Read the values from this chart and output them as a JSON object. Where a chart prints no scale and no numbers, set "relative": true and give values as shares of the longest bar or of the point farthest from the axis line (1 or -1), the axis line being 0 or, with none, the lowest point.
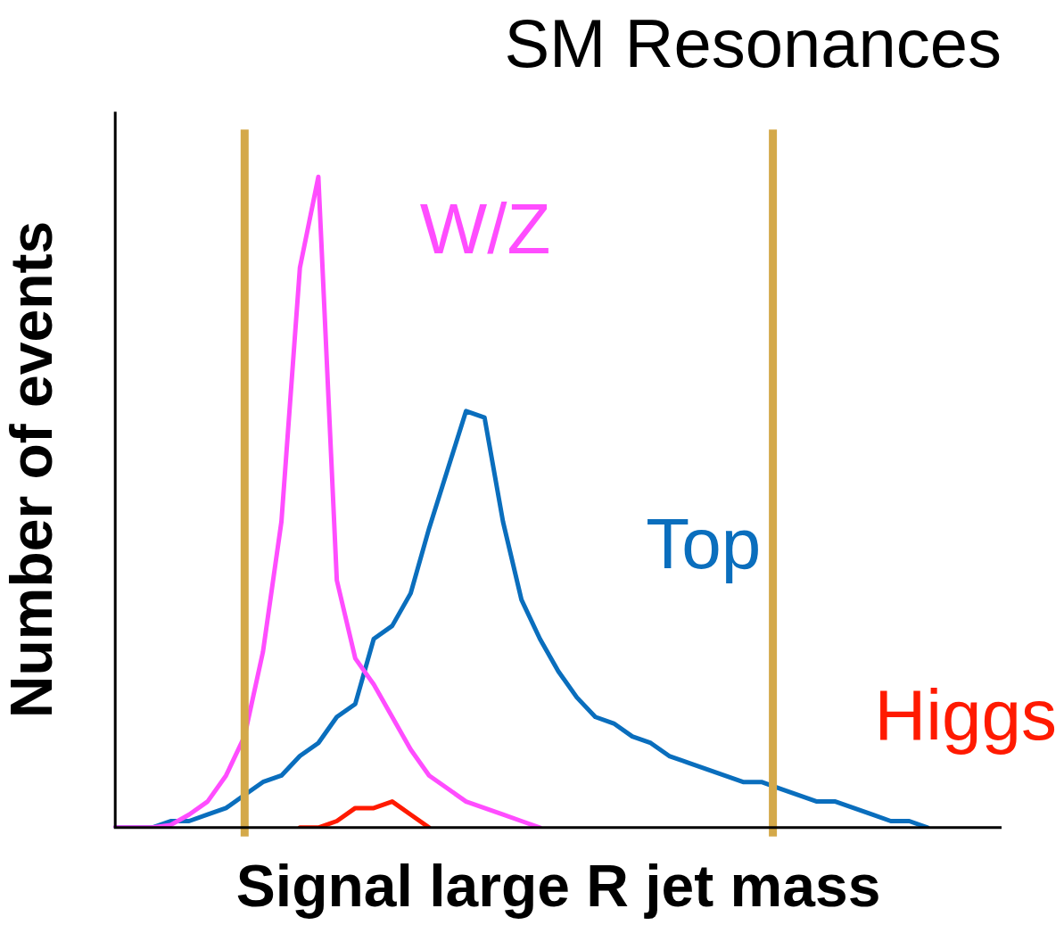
{
  "chart_data": {
    "type": "line",
    "title": "SM Resonances",
    "xlabel": "Signal large R jet mass",
    "ylabel": "Number of events",
    "relative": true,
    "legend": false,
    "grid": false,
    "marker": "none",
    "line_style": "solid",
    "categories": [
      null,
      null,
      null,
      null,
      null,
      null,
      null,
      null,
      null,
      null,
      null,
      null,
      null,
      null,
      null,
      null,
      null,
      null,
      null,
      null,
      null,
      null,
      null,
      null,
      null,
      null,
      null,
      null,
      null,
      null,
      null,
      null,
      null,
      null,
      null,
      null,
      null,
      null,
      null,
      null,
      null,
      null,
      null,
      null,
      null,
      null,
      null,
      null,
      null
    ],
    "series": [
      {
        "name": "W/Z",
        "color": "#ff4dff",
        "values": [
          0,
          0,
          0,
          0.004,
          0.02,
          0.04,
          0.08,
          0.14,
          0.27,
          0.47,
          0.86,
          1,
          0.38,
          0.26,
          0.22,
          0.17,
          0.12,
          0.08,
          0.06,
          0.04,
          0.03,
          0.02,
          0.01,
          0,
          null,
          null,
          null,
          null,
          null,
          null,
          null,
          null,
          null,
          null,
          null,
          null,
          null,
          null,
          null,
          null,
          null,
          null,
          null,
          null,
          null,
          null,
          null,
          null,
          null
        ]
      },
      {
        "name": "Top",
        "color": "#0a6ebd",
        "values": [
          0,
          0,
          0,
          0.01,
          0.01,
          0.02,
          0.03,
          0.05,
          0.07,
          0.08,
          0.11,
          0.13,
          0.17,
          0.19,
          0.29,
          0.31,
          0.36,
          0.46,
          0.55,
          0.64,
          0.63,
          0.47,
          0.35,
          0.29,
          0.24,
          0.2,
          0.17,
          0.16,
          0.14,
          0.13,
          0.11,
          0.1,
          0.09,
          0.08,
          0.07,
          0.07,
          0.06,
          0.05,
          0.04,
          0.04,
          0.03,
          0.02,
          0.01,
          0.01,
          0,
          null,
          null,
          null,
          null
        ]
      },
      {
        "name": "Higgs",
        "color": "#ff1a00",
        "values": [
          null,
          null,
          null,
          null,
          null,
          null,
          null,
          null,
          null,
          null,
          0,
          0,
          0.01,
          0.03,
          0.03,
          0.04,
          0.02,
          0,
          null,
          null,
          null,
          null,
          null,
          null,
          null,
          null,
          null,
          null,
          null,
          null,
          null,
          null,
          null,
          null,
          null,
          null,
          null,
          null,
          null,
          null,
          null,
          null,
          null,
          null,
          null,
          null,
          null,
          null,
          null
        ]
      }
    ]
  }
}
